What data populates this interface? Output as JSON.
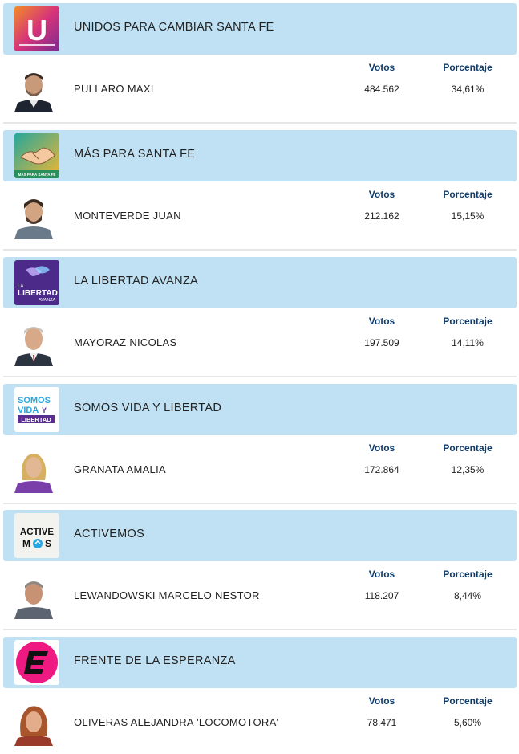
{
  "headers": {
    "votos": "Votos",
    "porcentaje": "Porcentaje"
  },
  "results": [
    {
      "party": "UNIDOS PARA CAMBIAR SANTA FE",
      "logo_icon": "unidos-u-logo",
      "logo_letter": "U",
      "candidate": "PULLARO MAXI",
      "votes": "484.562",
      "percent": "34,61%"
    },
    {
      "party": "MÁS PARA SANTA FE",
      "logo_icon": "handshake-logo",
      "logo_text": "MAS PARA SANTA FE",
      "candidate": "MONTEVERDE JUAN",
      "votes": "212.162",
      "percent": "15,15%"
    },
    {
      "party": "LA LIBERTAD AVANZA",
      "logo_icon": "libertad-avanza-logo",
      "logo_lines": [
        "LA",
        "LIBERTAD",
        "AVANZA"
      ],
      "candidate": "MAYORAZ NICOLAS",
      "votes": "197.509",
      "percent": "14,11%"
    },
    {
      "party": "SOMOS VIDA Y LIBERTAD",
      "logo_icon": "somos-vida-logo",
      "logo_lines": [
        "SOMOS",
        "VIDA",
        "Y",
        "LIBERTAD"
      ],
      "candidate": "GRANATA AMALIA",
      "votes": "172.864",
      "percent": "12,35%"
    },
    {
      "party": "ACTIVEMOS",
      "logo_icon": "activemos-logo",
      "logo_lines": [
        "ACTIVE",
        "M",
        "S"
      ],
      "candidate": "LEWANDOWSKI MARCELO NESTOR",
      "votes": "118.207",
      "percent": "8,44%"
    },
    {
      "party": "FRENTE DE LA ESPERANZA",
      "logo_icon": "frente-esperanza-logo",
      "logo_letter": "E",
      "candidate": "OLIVERAS ALEJANDRA 'LOCOMOTORA'",
      "votes": "78.471",
      "percent": "5,60%"
    }
  ]
}
